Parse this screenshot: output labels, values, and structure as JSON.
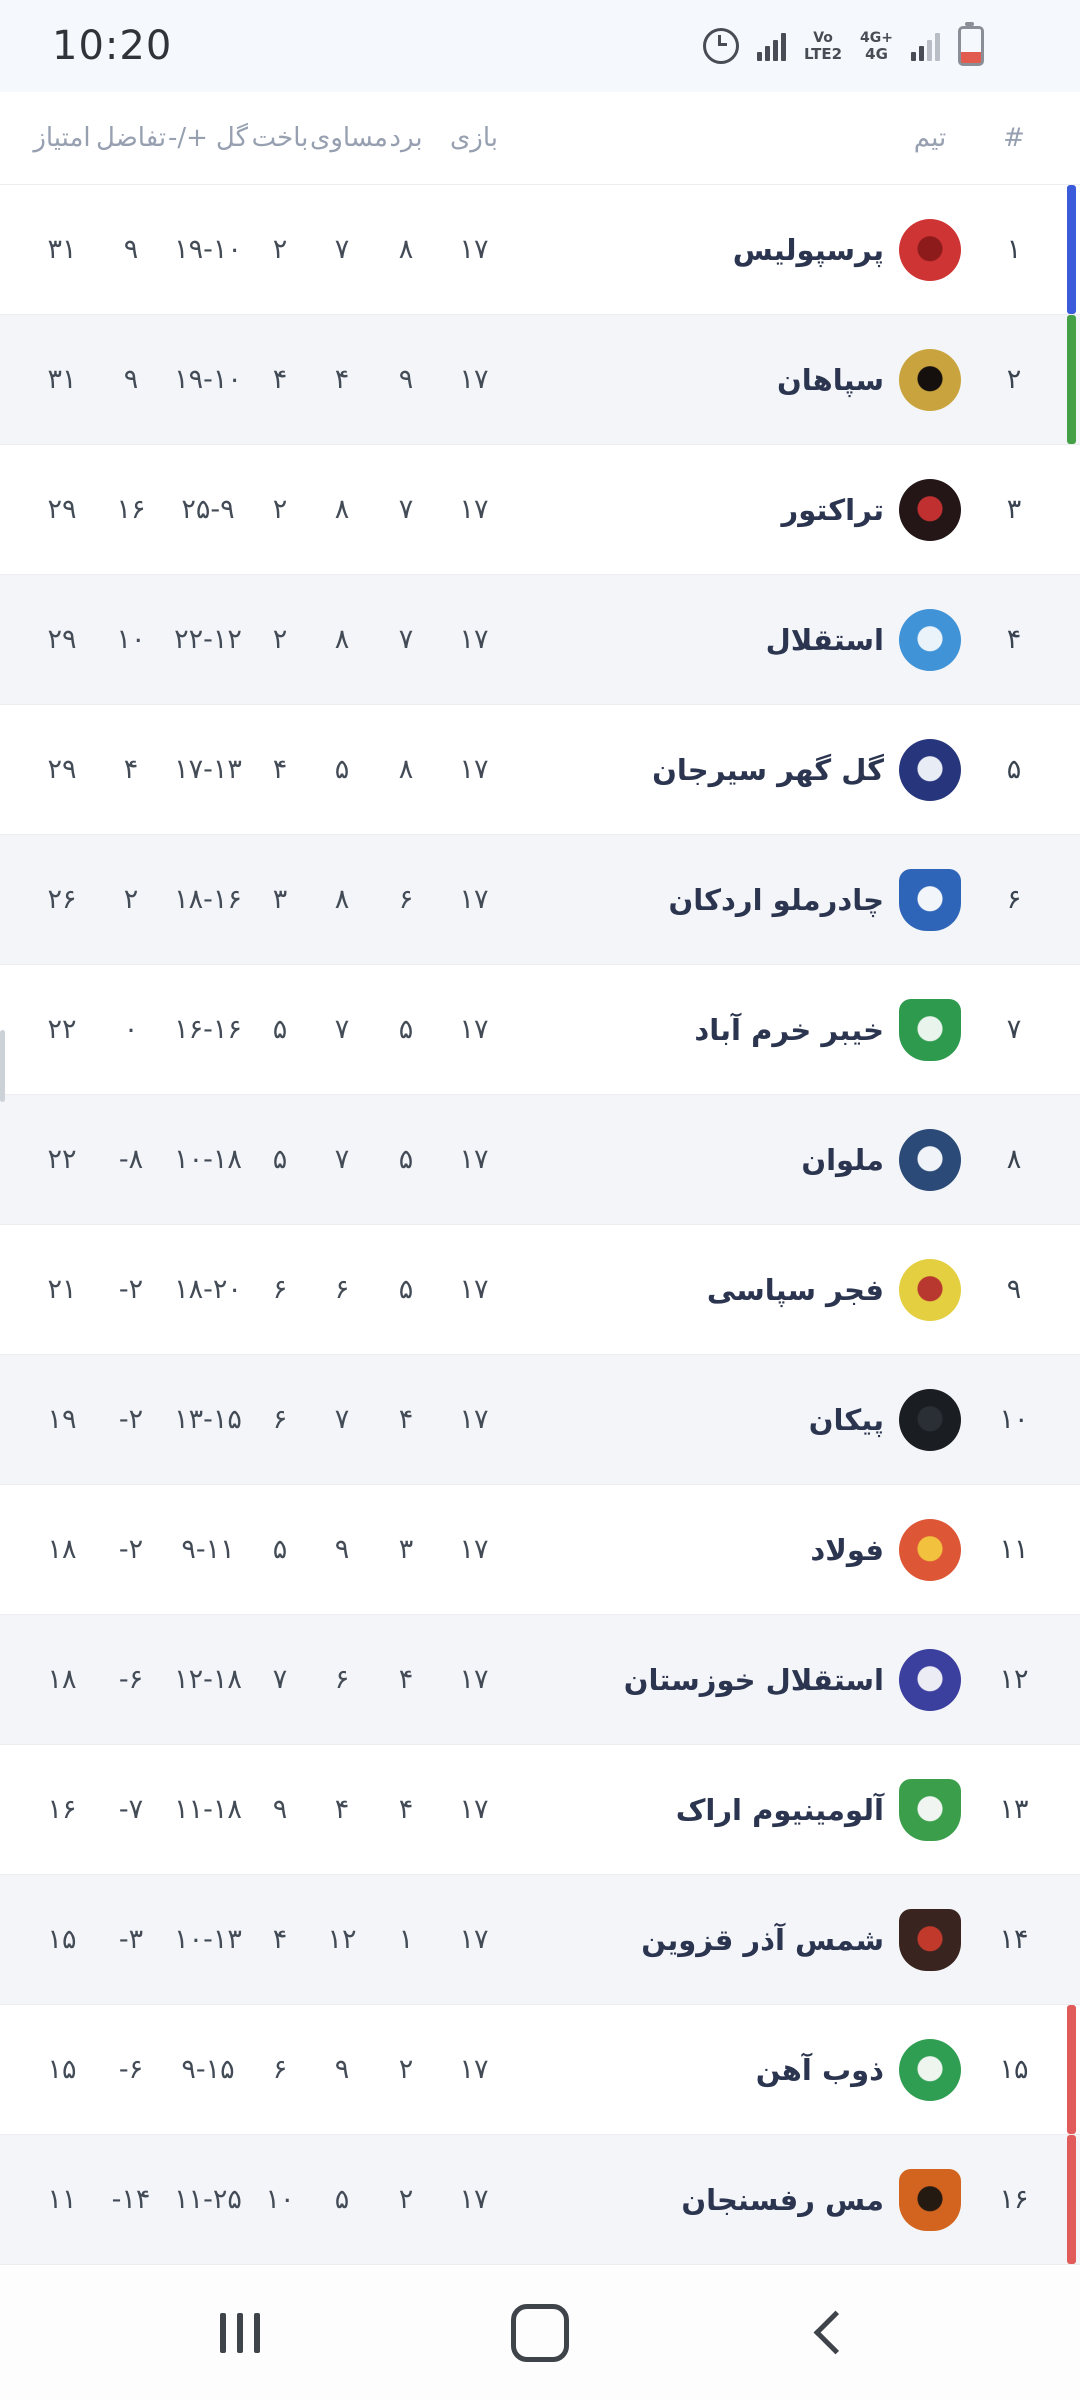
{
  "status_bar": {
    "time": "10:20",
    "icons": [
      "alarm-icon",
      "signal-bars-icon",
      "volte-badge",
      "4g-badge",
      "signal-bars-icon",
      "battery-icon"
    ],
    "badges": [
      {
        "top": "Vo",
        "bottom": "LTE2"
      },
      {
        "top": "4G+",
        "bottom": "4G"
      }
    ],
    "battery_level_color": "#e25b4f"
  },
  "header": {
    "rank": "#",
    "team": "تیم",
    "games": "بازی",
    "wins": "برد",
    "draws": "مساوی",
    "losses": "باخت",
    "goals": "گل",
    "plus_minus": "-/+",
    "diff": "تفاضل",
    "points": "امتیاز"
  },
  "colors": {
    "bar_blue": "#3b5bdb",
    "bar_green": "#43a047",
    "bar_red": "#e25b5b",
    "row_alt_bg": "#f3f5f8"
  },
  "table": {
    "rows": [
      {
        "rank": "۱",
        "team": "پرسپولیس",
        "games": "۱۷",
        "wins": "۸",
        "draws": "۷",
        "losses": "۲",
        "goals": "۱۹-۱۰",
        "diff": "۹",
        "points": "۳۱",
        "bar": "bar_blue",
        "logo": {
          "shape": "circle",
          "outer": "#cf3434",
          "inner": "#8e1b1b"
        }
      },
      {
        "rank": "۲",
        "team": "سپاهان",
        "games": "۱۷",
        "wins": "۹",
        "draws": "۴",
        "losses": "۴",
        "goals": "۱۹-۱۰",
        "diff": "۹",
        "points": "۳۱",
        "bar": "bar_green",
        "logo": {
          "shape": "circle",
          "outer": "#c9a43e",
          "inner": "#15100d"
        }
      },
      {
        "rank": "۳",
        "team": "تراکتور",
        "games": "۱۷",
        "wins": "۷",
        "draws": "۸",
        "losses": "۲",
        "goals": "۲۵-۹",
        "diff": "۱۶",
        "points": "۲۹",
        "bar": null,
        "logo": {
          "shape": "circle",
          "outer": "#241616",
          "inner": "#c03030"
        }
      },
      {
        "rank": "۴",
        "team": "استقلال",
        "games": "۱۷",
        "wins": "۷",
        "draws": "۸",
        "losses": "۲",
        "goals": "۲۲-۱۲",
        "diff": "۱۰",
        "points": "۲۹",
        "bar": null,
        "logo": {
          "shape": "circle",
          "outer": "#3f93d6",
          "inner": "#eaf2fa"
        }
      },
      {
        "rank": "۵",
        "team": "گل گهر سیرجان",
        "games": "۱۷",
        "wins": "۸",
        "draws": "۵",
        "losses": "۴",
        "goals": "۱۷-۱۳",
        "diff": "۴",
        "points": "۲۹",
        "bar": null,
        "logo": {
          "shape": "circle",
          "outer": "#27357c",
          "inner": "#e8ecf5"
        }
      },
      {
        "rank": "۶",
        "team": "چادرملو اردکان",
        "games": "۱۷",
        "wins": "۶",
        "draws": "۸",
        "losses": "۳",
        "goals": "۱۸-۱۶",
        "diff": "۲",
        "points": "۲۶",
        "bar": null,
        "logo": {
          "shape": "shield",
          "outer": "#2f65b8",
          "inner": "#f2f6fb"
        }
      },
      {
        "rank": "۷",
        "team": "خیبر خرم آباد",
        "games": "۱۷",
        "wins": "۵",
        "draws": "۷",
        "losses": "۵",
        "goals": "۱۶-۱۶",
        "diff": "۰",
        "points": "۲۲",
        "bar": null,
        "logo": {
          "shape": "shield",
          "outer": "#2e9a4e",
          "inner": "#e9f4ec"
        }
      },
      {
        "rank": "۸",
        "team": "ملوان",
        "games": "۱۷",
        "wins": "۵",
        "draws": "۷",
        "losses": "۵",
        "goals": "۱۰-۱۸",
        "diff": "-۸",
        "points": "۲۲",
        "bar": null,
        "logo": {
          "shape": "circle",
          "outer": "#2b4a78",
          "inner": "#f0f4f9"
        }
      },
      {
        "rank": "۹",
        "team": "فجر سپاسی",
        "games": "۱۷",
        "wins": "۵",
        "draws": "۶",
        "losses": "۶",
        "goals": "۱۸-۲۰",
        "diff": "-۲",
        "points": "۲۱",
        "bar": null,
        "logo": {
          "shape": "circle",
          "outer": "#e3cf3f",
          "inner": "#b8372f"
        }
      },
      {
        "rank": "۱۰",
        "team": "پیکان",
        "games": "۱۷",
        "wins": "۴",
        "draws": "۷",
        "losses": "۶",
        "goals": "۱۳-۱۵",
        "diff": "-۲",
        "points": "۱۹",
        "bar": null,
        "logo": {
          "shape": "circle",
          "outer": "#1a1d21",
          "inner": "#2a2f35"
        }
      },
      {
        "rank": "۱۱",
        "team": "فولاد",
        "games": "۱۷",
        "wins": "۳",
        "draws": "۹",
        "losses": "۵",
        "goals": "۹-۱۱",
        "diff": "-۲",
        "points": "۱۸",
        "bar": null,
        "logo": {
          "shape": "circle",
          "outer": "#dd5737",
          "inner": "#f2c13d"
        }
      },
      {
        "rank": "۱۲",
        "team": "استقلال خوزستان",
        "games": "۱۷",
        "wins": "۴",
        "draws": "۶",
        "losses": "۷",
        "goals": "۱۲-۱۸",
        "diff": "-۶",
        "points": "۱۸",
        "bar": null,
        "logo": {
          "shape": "circle",
          "outer": "#3b3f9e",
          "inner": "#ececf5"
        }
      },
      {
        "rank": "۱۳",
        "team": "آلومینیوم اراک",
        "games": "۱۷",
        "wins": "۴",
        "draws": "۴",
        "losses": "۹",
        "goals": "۱۱-۱۸",
        "diff": "-۷",
        "points": "۱۶",
        "bar": null,
        "logo": {
          "shape": "shield",
          "outer": "#3a9e4a",
          "inner": "#f0f5f1"
        }
      },
      {
        "rank": "۱۴",
        "team": "شمس آذر قزوین",
        "games": "۱۷",
        "wins": "۱",
        "draws": "۱۲",
        "losses": "۴",
        "goals": "۱۰-۱۳",
        "diff": "-۳",
        "points": "۱۵",
        "bar": null,
        "logo": {
          "shape": "shield",
          "outer": "#3a2420",
          "inner": "#c0392b"
        }
      },
      {
        "rank": "۱۵",
        "team": "ذوب آهن",
        "games": "۱۷",
        "wins": "۲",
        "draws": "۹",
        "losses": "۶",
        "goals": "۹-۱۵",
        "diff": "-۶",
        "points": "۱۵",
        "bar": "bar_red",
        "logo": {
          "shape": "circle",
          "outer": "#2f9e52",
          "inner": "#eef5ef"
        }
      },
      {
        "rank": "۱۶",
        "team": "مس رفسنجان",
        "games": "۱۷",
        "wins": "۲",
        "draws": "۵",
        "losses": "۱۰",
        "goals": "۱۱-۲۵",
        "diff": "-۱۴",
        "points": "۱۱",
        "bar": "bar_red",
        "logo": {
          "shape": "shield",
          "outer": "#d2641f",
          "inner": "#241a12"
        }
      }
    ]
  },
  "nav": {
    "icons": [
      "recents",
      "home",
      "back"
    ]
  }
}
